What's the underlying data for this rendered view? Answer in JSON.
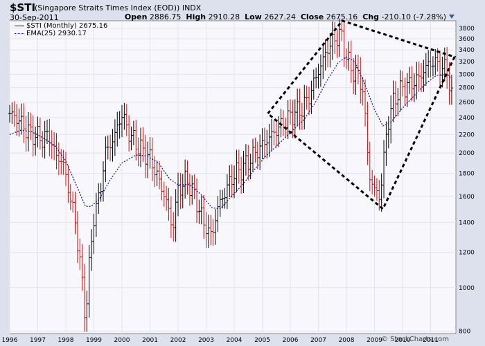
{
  "header": {
    "symbol": "$STI",
    "name": "(Singapore Straits Times Index (EOD))",
    "exchange": "INDX",
    "date": "30-Sep-2011",
    "open_label": "Open",
    "open": "2886.75",
    "high_label": "High",
    "high": "2910.28",
    "low_label": "Low",
    "low": "2627.24",
    "close_label": "Close",
    "close": "2675.16",
    "chg_label": "Chg",
    "chg": "-210.10 (-7.28%)"
  },
  "legend": {
    "price": "$STI (Monthly) 2675.16",
    "ema": "EMA(25) 2930.17"
  },
  "watermark": "© StockCharts.com",
  "colors": {
    "up": "#000000",
    "down": "#cc1111",
    "ema": "#1c1c9c",
    "grid": "#e3e3ec",
    "plot_bg": "#f8f8fc",
    "frame_bg": "#dde1ee"
  },
  "chart_data": {
    "type": "ohlc",
    "scale": "log",
    "ylim": [
      790,
      3950
    ],
    "xlim": [
      1996.0,
      2011.9
    ],
    "y_ticks": [
      800,
      1000,
      1200,
      1400,
      1600,
      1800,
      2000,
      2200,
      2400,
      2600,
      2800,
      3000,
      3200,
      3400,
      3600,
      3800
    ],
    "x_ticks": [
      "1996",
      "1997",
      "1998",
      "1999",
      "2000",
      "2001",
      "2002",
      "2003",
      "2004",
      "2005",
      "2006",
      "2007",
      "2008",
      "2009",
      "2010",
      "2011"
    ],
    "grid": true,
    "legend_position": "top-left",
    "anchors": [
      [
        1996.0,
        2450
      ],
      [
        1996.3,
        2380
      ],
      [
        1996.6,
        2250
      ],
      [
        1996.9,
        2190
      ],
      [
        1997.2,
        2150
      ],
      [
        1997.4,
        2200
      ],
      [
        1997.6,
        2000
      ],
      [
        1997.9,
        1900
      ],
      [
        1998.1,
        1650
      ],
      [
        1998.3,
        1450
      ],
      [
        1998.5,
        1150
      ],
      [
        1998.7,
        850
      ],
      [
        1998.8,
        1050
      ],
      [
        1999.0,
        1450
      ],
      [
        1999.2,
        1600
      ],
      [
        1999.4,
        2000
      ],
      [
        1999.7,
        2150
      ],
      [
        2000.0,
        2450
      ],
      [
        2000.2,
        2250
      ],
      [
        2000.5,
        2100
      ],
      [
        2000.8,
        2000
      ],
      [
        2001.0,
        1950
      ],
      [
        2001.3,
        1750
      ],
      [
        2001.6,
        1550
      ],
      [
        2001.8,
        1350
      ],
      [
        2002.0,
        1650
      ],
      [
        2002.3,
        1750
      ],
      [
        2002.6,
        1600
      ],
      [
        2002.9,
        1400
      ],
      [
        2003.2,
        1300
      ],
      [
        2003.4,
        1500
      ],
      [
        2003.7,
        1650
      ],
      [
        2004.0,
        1800
      ],
      [
        2004.3,
        1850
      ],
      [
        2004.6,
        1950
      ],
      [
        2004.9,
        2050
      ],
      [
        2005.2,
        2150
      ],
      [
        2005.5,
        2250
      ],
      [
        2005.8,
        2350
      ],
      [
        2006.1,
        2450
      ],
      [
        2006.4,
        2500
      ],
      [
        2006.7,
        2700
      ],
      [
        2006.9,
        2950
      ],
      [
        2007.1,
        3150
      ],
      [
        2007.3,
        3400
      ],
      [
        2007.5,
        3550
      ],
      [
        2007.8,
        3700
      ],
      [
        2007.95,
        3350
      ],
      [
        2008.2,
        3050
      ],
      [
        2008.4,
        3000
      ],
      [
        2008.6,
        2750
      ],
      [
        2008.8,
        1800
      ],
      [
        2009.0,
        1650
      ],
      [
        2009.2,
        1600
      ],
      [
        2009.45,
        2300
      ],
      [
        2009.7,
        2650
      ],
      [
        2010.0,
        2800
      ],
      [
        2010.3,
        2850
      ],
      [
        2010.6,
        2950
      ],
      [
        2010.9,
        3150
      ],
      [
        2011.1,
        3200
      ],
      [
        2011.4,
        3100
      ],
      [
        2011.6,
        3050
      ],
      [
        2011.75,
        2680
      ]
    ],
    "ema_anchors": [
      [
        1996.0,
        2200
      ],
      [
        1996.4,
        2250
      ],
      [
        1996.8,
        2230
      ],
      [
        1997.2,
        2160
      ],
      [
        1997.6,
        2080
      ],
      [
        1998.0,
        1920
      ],
      [
        1998.4,
        1680
      ],
      [
        1998.7,
        1520
      ],
      [
        1998.9,
        1520
      ],
      [
        1999.2,
        1580
      ],
      [
        1999.6,
        1750
      ],
      [
        2000.0,
        1900
      ],
      [
        2000.5,
        1980
      ],
      [
        2000.9,
        1970
      ],
      [
        2001.3,
        1900
      ],
      [
        2001.7,
        1750
      ],
      [
        2002.0,
        1700
      ],
      [
        2002.4,
        1700
      ],
      [
        2002.8,
        1620
      ],
      [
        2003.2,
        1510
      ],
      [
        2003.5,
        1500
      ],
      [
        2003.9,
        1600
      ],
      [
        2004.3,
        1700
      ],
      [
        2004.7,
        1830
      ],
      [
        2005.1,
        1960
      ],
      [
        2005.6,
        2100
      ],
      [
        2006.0,
        2220
      ],
      [
        2006.5,
        2380
      ],
      [
        2006.9,
        2600
      ],
      [
        2007.3,
        2900
      ],
      [
        2007.7,
        3180
      ],
      [
        2008.0,
        3280
      ],
      [
        2008.3,
        3200
      ],
      [
        2008.7,
        2800
      ],
      [
        2009.0,
        2500
      ],
      [
        2009.3,
        2300
      ],
      [
        2009.6,
        2350
      ],
      [
        2010.0,
        2520
      ],
      [
        2010.4,
        2680
      ],
      [
        2010.8,
        2850
      ],
      [
        2011.2,
        2980
      ],
      [
        2011.6,
        3000
      ],
      [
        2011.75,
        2930
      ]
    ],
    "annotation": {
      "type": "dashed-polygon",
      "points": [
        [
          2005.2,
          2450
        ],
        [
          2007.85,
          3950
        ],
        [
          2011.85,
          3280
        ],
        [
          2009.3,
          1500
        ]
      ]
    }
  }
}
